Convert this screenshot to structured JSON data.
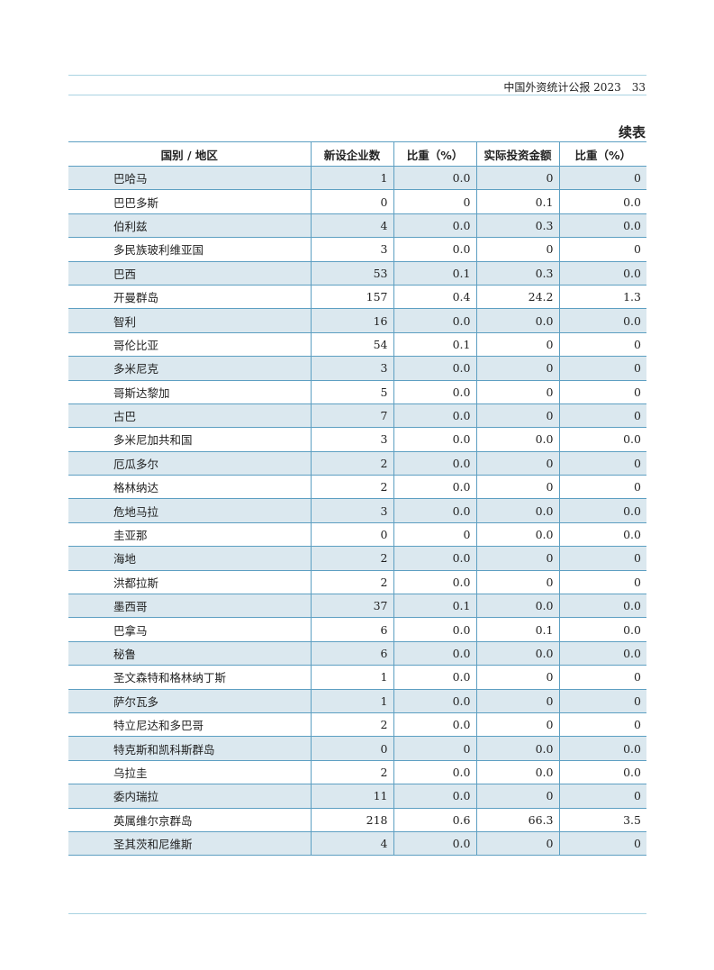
{
  "header": {
    "publication": "中国外资统计公报 2023",
    "page_number": "33"
  },
  "table_caption": "续表",
  "table": {
    "columns": [
      "国别 / 地区",
      "新设企业数",
      "比重（%）",
      "实际投资金额",
      "比重（%）"
    ],
    "rows": [
      [
        "巴哈马",
        "1",
        "0.0",
        "0",
        "0"
      ],
      [
        "巴巴多斯",
        "0",
        "0",
        "0.1",
        "0.0"
      ],
      [
        "伯利兹",
        "4",
        "0.0",
        "0.3",
        "0.0"
      ],
      [
        "多民族玻利维亚国",
        "3",
        "0.0",
        "0",
        "0"
      ],
      [
        "巴西",
        "53",
        "0.1",
        "0.3",
        "0.0"
      ],
      [
        "开曼群岛",
        "157",
        "0.4",
        "24.2",
        "1.3"
      ],
      [
        "智利",
        "16",
        "0.0",
        "0.0",
        "0.0"
      ],
      [
        "哥伦比亚",
        "54",
        "0.1",
        "0",
        "0"
      ],
      [
        "多米尼克",
        "3",
        "0.0",
        "0",
        "0"
      ],
      [
        "哥斯达黎加",
        "5",
        "0.0",
        "0",
        "0"
      ],
      [
        "古巴",
        "7",
        "0.0",
        "0",
        "0"
      ],
      [
        "多米尼加共和国",
        "3",
        "0.0",
        "0.0",
        "0.0"
      ],
      [
        "厄瓜多尔",
        "2",
        "0.0",
        "0",
        "0"
      ],
      [
        "格林纳达",
        "2",
        "0.0",
        "0",
        "0"
      ],
      [
        "危地马拉",
        "3",
        "0.0",
        "0.0",
        "0.0"
      ],
      [
        "圭亚那",
        "0",
        "0",
        "0.0",
        "0.0"
      ],
      [
        "海地",
        "2",
        "0.0",
        "0",
        "0"
      ],
      [
        "洪都拉斯",
        "2",
        "0.0",
        "0",
        "0"
      ],
      [
        "墨西哥",
        "37",
        "0.1",
        "0.0",
        "0.0"
      ],
      [
        "巴拿马",
        "6",
        "0.0",
        "0.1",
        "0.0"
      ],
      [
        "秘鲁",
        "6",
        "0.0",
        "0.0",
        "0.0"
      ],
      [
        "圣文森特和格林纳丁斯",
        "1",
        "0.0",
        "0",
        "0"
      ],
      [
        "萨尔瓦多",
        "1",
        "0.0",
        "0",
        "0"
      ],
      [
        "特立尼达和多巴哥",
        "2",
        "0.0",
        "0",
        "0"
      ],
      [
        "特克斯和凯科斯群岛",
        "0",
        "0",
        "0.0",
        "0.0"
      ],
      [
        "乌拉圭",
        "2",
        "0.0",
        "0.0",
        "0.0"
      ],
      [
        "委内瑞拉",
        "11",
        "0.0",
        "0",
        "0"
      ],
      [
        "英属维尔京群岛",
        "218",
        "0.6",
        "66.3",
        "3.5"
      ],
      [
        "圣其茨和尼维斯",
        "4",
        "0.0",
        "0",
        "0"
      ]
    ]
  },
  "colors": {
    "rule": "#a9d3e2",
    "border": "#5d9fc2",
    "row_shade": "#dbe8ef"
  }
}
